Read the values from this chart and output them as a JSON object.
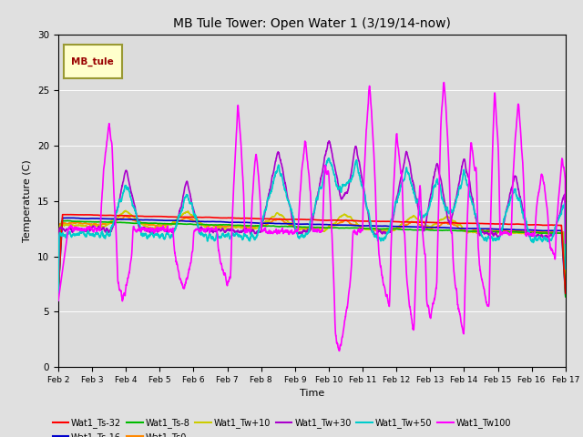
{
  "title": "MB Tule Tower: Open Water 1 (3/19/14-now)",
  "xlabel": "Time",
  "ylabel": "Temperature (C)",
  "ylim": [
    0,
    30
  ],
  "xlim": [
    0,
    15
  ],
  "fig_bg": "#e0e0e0",
  "plot_bg": "#dcdcdc",
  "series": {
    "Wat1_Ts-32": {
      "color": "#ff0000",
      "lw": 1.2
    },
    "Wat1_Ts-16": {
      "color": "#0000cc",
      "lw": 1.2
    },
    "Wat1_Ts-8": {
      "color": "#00bb00",
      "lw": 1.2
    },
    "Wat1_Ts0": {
      "color": "#ff8800",
      "lw": 1.2
    },
    "Wat1_Tw+10": {
      "color": "#cccc00",
      "lw": 1.2
    },
    "Wat1_Tw+30": {
      "color": "#aa00cc",
      "lw": 1.2
    },
    "Wat1_Tw+50": {
      "color": "#00cccc",
      "lw": 1.2
    },
    "Wat1_Tw100": {
      "color": "#ff00ff",
      "lw": 1.2
    }
  },
  "xtick_labels": [
    "Feb 2",
    "Feb 3",
    "Feb 4",
    "Feb 5",
    "Feb 6",
    "Feb 7",
    "Feb 8",
    "Feb 9",
    "Feb 10",
    "Feb 11",
    "Feb 12",
    "Feb 13",
    "Feb 14",
    "Feb 15",
    "Feb 16",
    "Feb 17"
  ],
  "xtick_positions": [
    0,
    1,
    2,
    3,
    4,
    5,
    6,
    7,
    8,
    9,
    10,
    11,
    12,
    13,
    14,
    15
  ],
  "ytick_positions": [
    0,
    5,
    10,
    15,
    20,
    25,
    30
  ],
  "inset_label": "MB_tule",
  "inset_label_color": "#990000",
  "inset_bg": "#ffffcc",
  "inset_border": "#999933"
}
